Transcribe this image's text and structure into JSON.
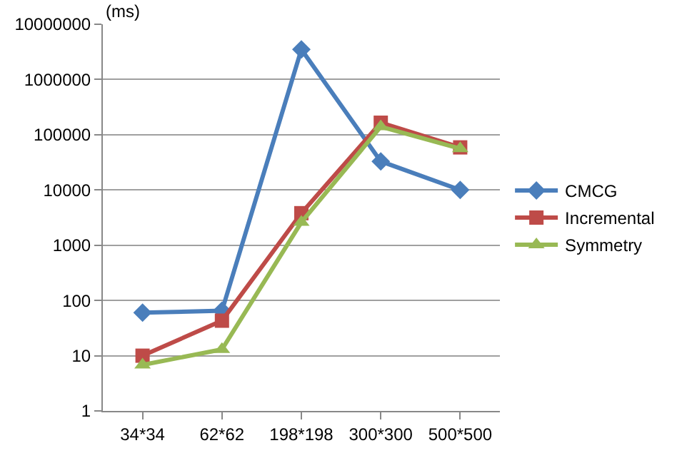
{
  "chart_data": {
    "type": "line",
    "annotations": [
      "(ms)"
    ],
    "categories": [
      "34*34",
      "62*62",
      "198*198",
      "300*300",
      "500*500"
    ],
    "series": [
      {
        "name": "CMCG",
        "color": "#4a7ebb",
        "marker": "diamond",
        "values": [
          60,
          65,
          3500000,
          33000,
          10000
        ]
      },
      {
        "name": "Incremental",
        "color": "#be4b48",
        "marker": "square",
        "values": [
          10,
          43,
          3800,
          165000,
          59000
        ]
      },
      {
        "name": "Symmetry",
        "color": "#98b954",
        "marker": "triangle",
        "values": [
          6.8,
          13,
          2600,
          140000,
          56000
        ]
      }
    ],
    "log": "y",
    "ylim": [
      1,
      10000000
    ],
    "yticks": [
      1,
      10,
      100,
      1000,
      10000,
      100000,
      1000000,
      10000000
    ],
    "grid": "y",
    "legend": "right",
    "line_style": "solid"
  }
}
